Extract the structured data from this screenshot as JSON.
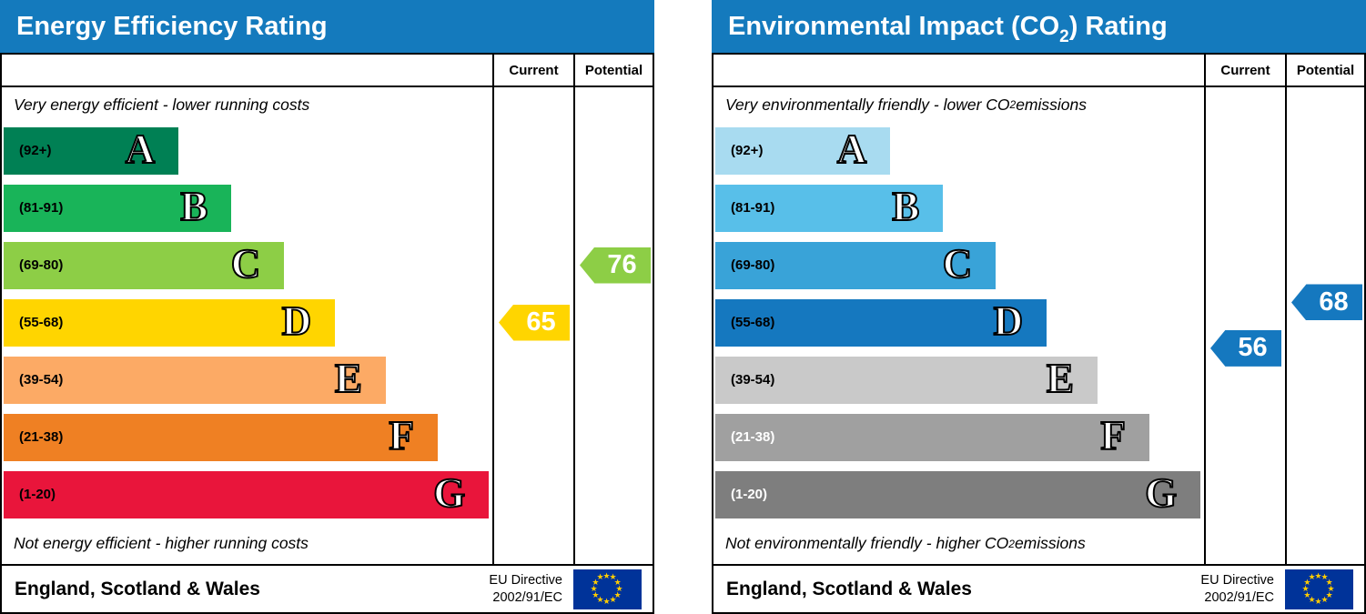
{
  "colors": {
    "header_bg": "#147abd",
    "border": "#000000",
    "eu_flag_bg": "#003399",
    "eu_star": "#ffcc00"
  },
  "charts": [
    {
      "title_pre": "Energy Efficiency Rating",
      "title_sub": "",
      "title_post": "",
      "col_current": "Current",
      "col_potential": "Potential",
      "top_note_pre": "Very energy efficient - lower running costs",
      "top_note_sub": "",
      "top_note_post": "",
      "bottom_note_pre": "Not energy efficient - higher running costs",
      "bottom_note_sub": "",
      "bottom_note_post": "",
      "bands": [
        {
          "range": "(92+)",
          "letter": "A",
          "color": "#008054",
          "label_color": "#000000",
          "width_pct": 35.8
        },
        {
          "range": "(81-91)",
          "letter": "B",
          "color": "#19b459",
          "label_color": "#000000",
          "width_pct": 46.6
        },
        {
          "range": "(69-80)",
          "letter": "C",
          "color": "#8dce46",
          "label_color": "#000000",
          "width_pct": 57.4
        },
        {
          "range": "(55-68)",
          "letter": "D",
          "color": "#ffd500",
          "label_color": "#000000",
          "width_pct": 67.8
        },
        {
          "range": "(39-54)",
          "letter": "E",
          "color": "#fcaa65",
          "label_color": "#000000",
          "width_pct": 78.2
        },
        {
          "range": "(21-38)",
          "letter": "F",
          "color": "#ef8023",
          "label_color": "#000000",
          "width_pct": 88.8
        },
        {
          "range": "(1-20)",
          "letter": "G",
          "color": "#e9153b",
          "label_color": "#000000",
          "width_pct": 99.3
        }
      ],
      "current": {
        "value": "65",
        "color": "#ffd500",
        "row": 3,
        "shift": 0
      },
      "potential": {
        "value": "76",
        "color": "#8dce46",
        "row": 2,
        "shift": 0
      },
      "footer_region": "England, Scotland & Wales",
      "directive_line1": "EU Directive",
      "directive_line2": "2002/91/EC"
    },
    {
      "title_pre": "Environmental Impact (CO",
      "title_sub": "2",
      "title_post": ") Rating",
      "col_current": "Current",
      "col_potential": "Potential",
      "top_note_pre": "Very environmentally friendly - lower CO",
      "top_note_sub": "2",
      "top_note_post": " emissions",
      "bottom_note_pre": "Not environmentally friendly - higher CO",
      "bottom_note_sub": "2",
      "bottom_note_post": " emissions",
      "bands": [
        {
          "range": "(92+)",
          "letter": "A",
          "color": "#a8dbf0",
          "label_color": "#000000",
          "width_pct": 35.8
        },
        {
          "range": "(81-91)",
          "letter": "B",
          "color": "#58bfe9",
          "label_color": "#000000",
          "width_pct": 46.6
        },
        {
          "range": "(69-80)",
          "letter": "C",
          "color": "#39a3d8",
          "label_color": "#000000",
          "width_pct": 57.4
        },
        {
          "range": "(55-68)",
          "letter": "D",
          "color": "#1578bf",
          "label_color": "#000000",
          "width_pct": 67.8
        },
        {
          "range": "(39-54)",
          "letter": "E",
          "color": "#c9c9c9",
          "label_color": "#000000",
          "width_pct": 78.2
        },
        {
          "range": "(21-38)",
          "letter": "F",
          "color": "#a0a0a0",
          "label_color": "#ffffff",
          "width_pct": 88.8
        },
        {
          "range": "(1-20)",
          "letter": "G",
          "color": "#7e7e7e",
          "label_color": "#ffffff",
          "width_pct": 99.3
        }
      ],
      "current": {
        "value": "56",
        "color": "#1578bf",
        "row": 3,
        "shift": 0.45
      },
      "potential": {
        "value": "68",
        "color": "#1578bf",
        "row": 3,
        "shift": -0.35
      },
      "footer_region": "England, Scotland & Wales",
      "directive_line1": "EU Directive",
      "directive_line2": "2002/91/EC"
    }
  ],
  "chart_data": [
    {
      "type": "bar",
      "title": "Energy Efficiency Rating",
      "categories": [
        "A (92+)",
        "B (81-91)",
        "C (69-80)",
        "D (55-68)",
        "E (39-54)",
        "F (21-38)",
        "G (1-20)"
      ],
      "current": 65,
      "potential": 76,
      "current_band": "D",
      "potential_band": "C",
      "top_note": "Very energy efficient - lower running costs",
      "bottom_note": "Not energy efficient - higher running costs",
      "region": "England, Scotland & Wales",
      "directive": "EU Directive 2002/91/EC"
    },
    {
      "type": "bar",
      "title": "Environmental Impact (CO2) Rating",
      "categories": [
        "A (92+)",
        "B (81-91)",
        "C (69-80)",
        "D (55-68)",
        "E (39-54)",
        "F (21-38)",
        "G (1-20)"
      ],
      "current": 56,
      "potential": 68,
      "current_band": "D",
      "potential_band": "D",
      "top_note": "Very environmentally friendly - lower CO2 emissions",
      "bottom_note": "Not environmentally friendly - higher CO2 emissions",
      "region": "England, Scotland & Wales",
      "directive": "EU Directive 2002/91/EC"
    }
  ]
}
